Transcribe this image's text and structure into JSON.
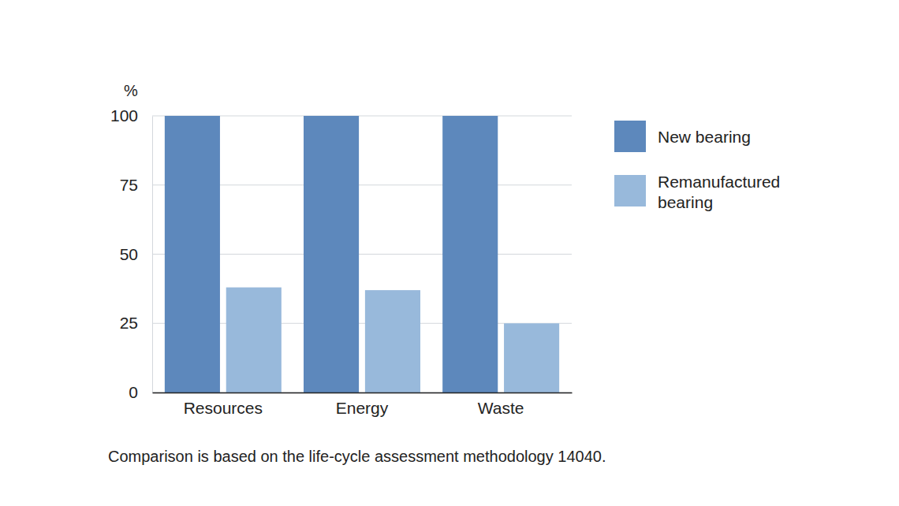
{
  "chart_data": {
    "type": "bar",
    "y_label": "%",
    "categories": [
      "Resources",
      "Energy",
      "Waste"
    ],
    "series": [
      {
        "name": "New bearing",
        "color": "#5d88bc",
        "values": [
          100,
          100,
          100
        ]
      },
      {
        "name": "Remanufactured bearing",
        "color": "#98b9db",
        "values": [
          38,
          37,
          25
        ]
      }
    ],
    "ylim": [
      0,
      100
    ],
    "yticks": [
      0,
      25,
      50,
      75,
      100
    ],
    "grid": true,
    "legend": "right",
    "annotation": "Comparison is based on the life-cycle assessment methodology 14040."
  }
}
